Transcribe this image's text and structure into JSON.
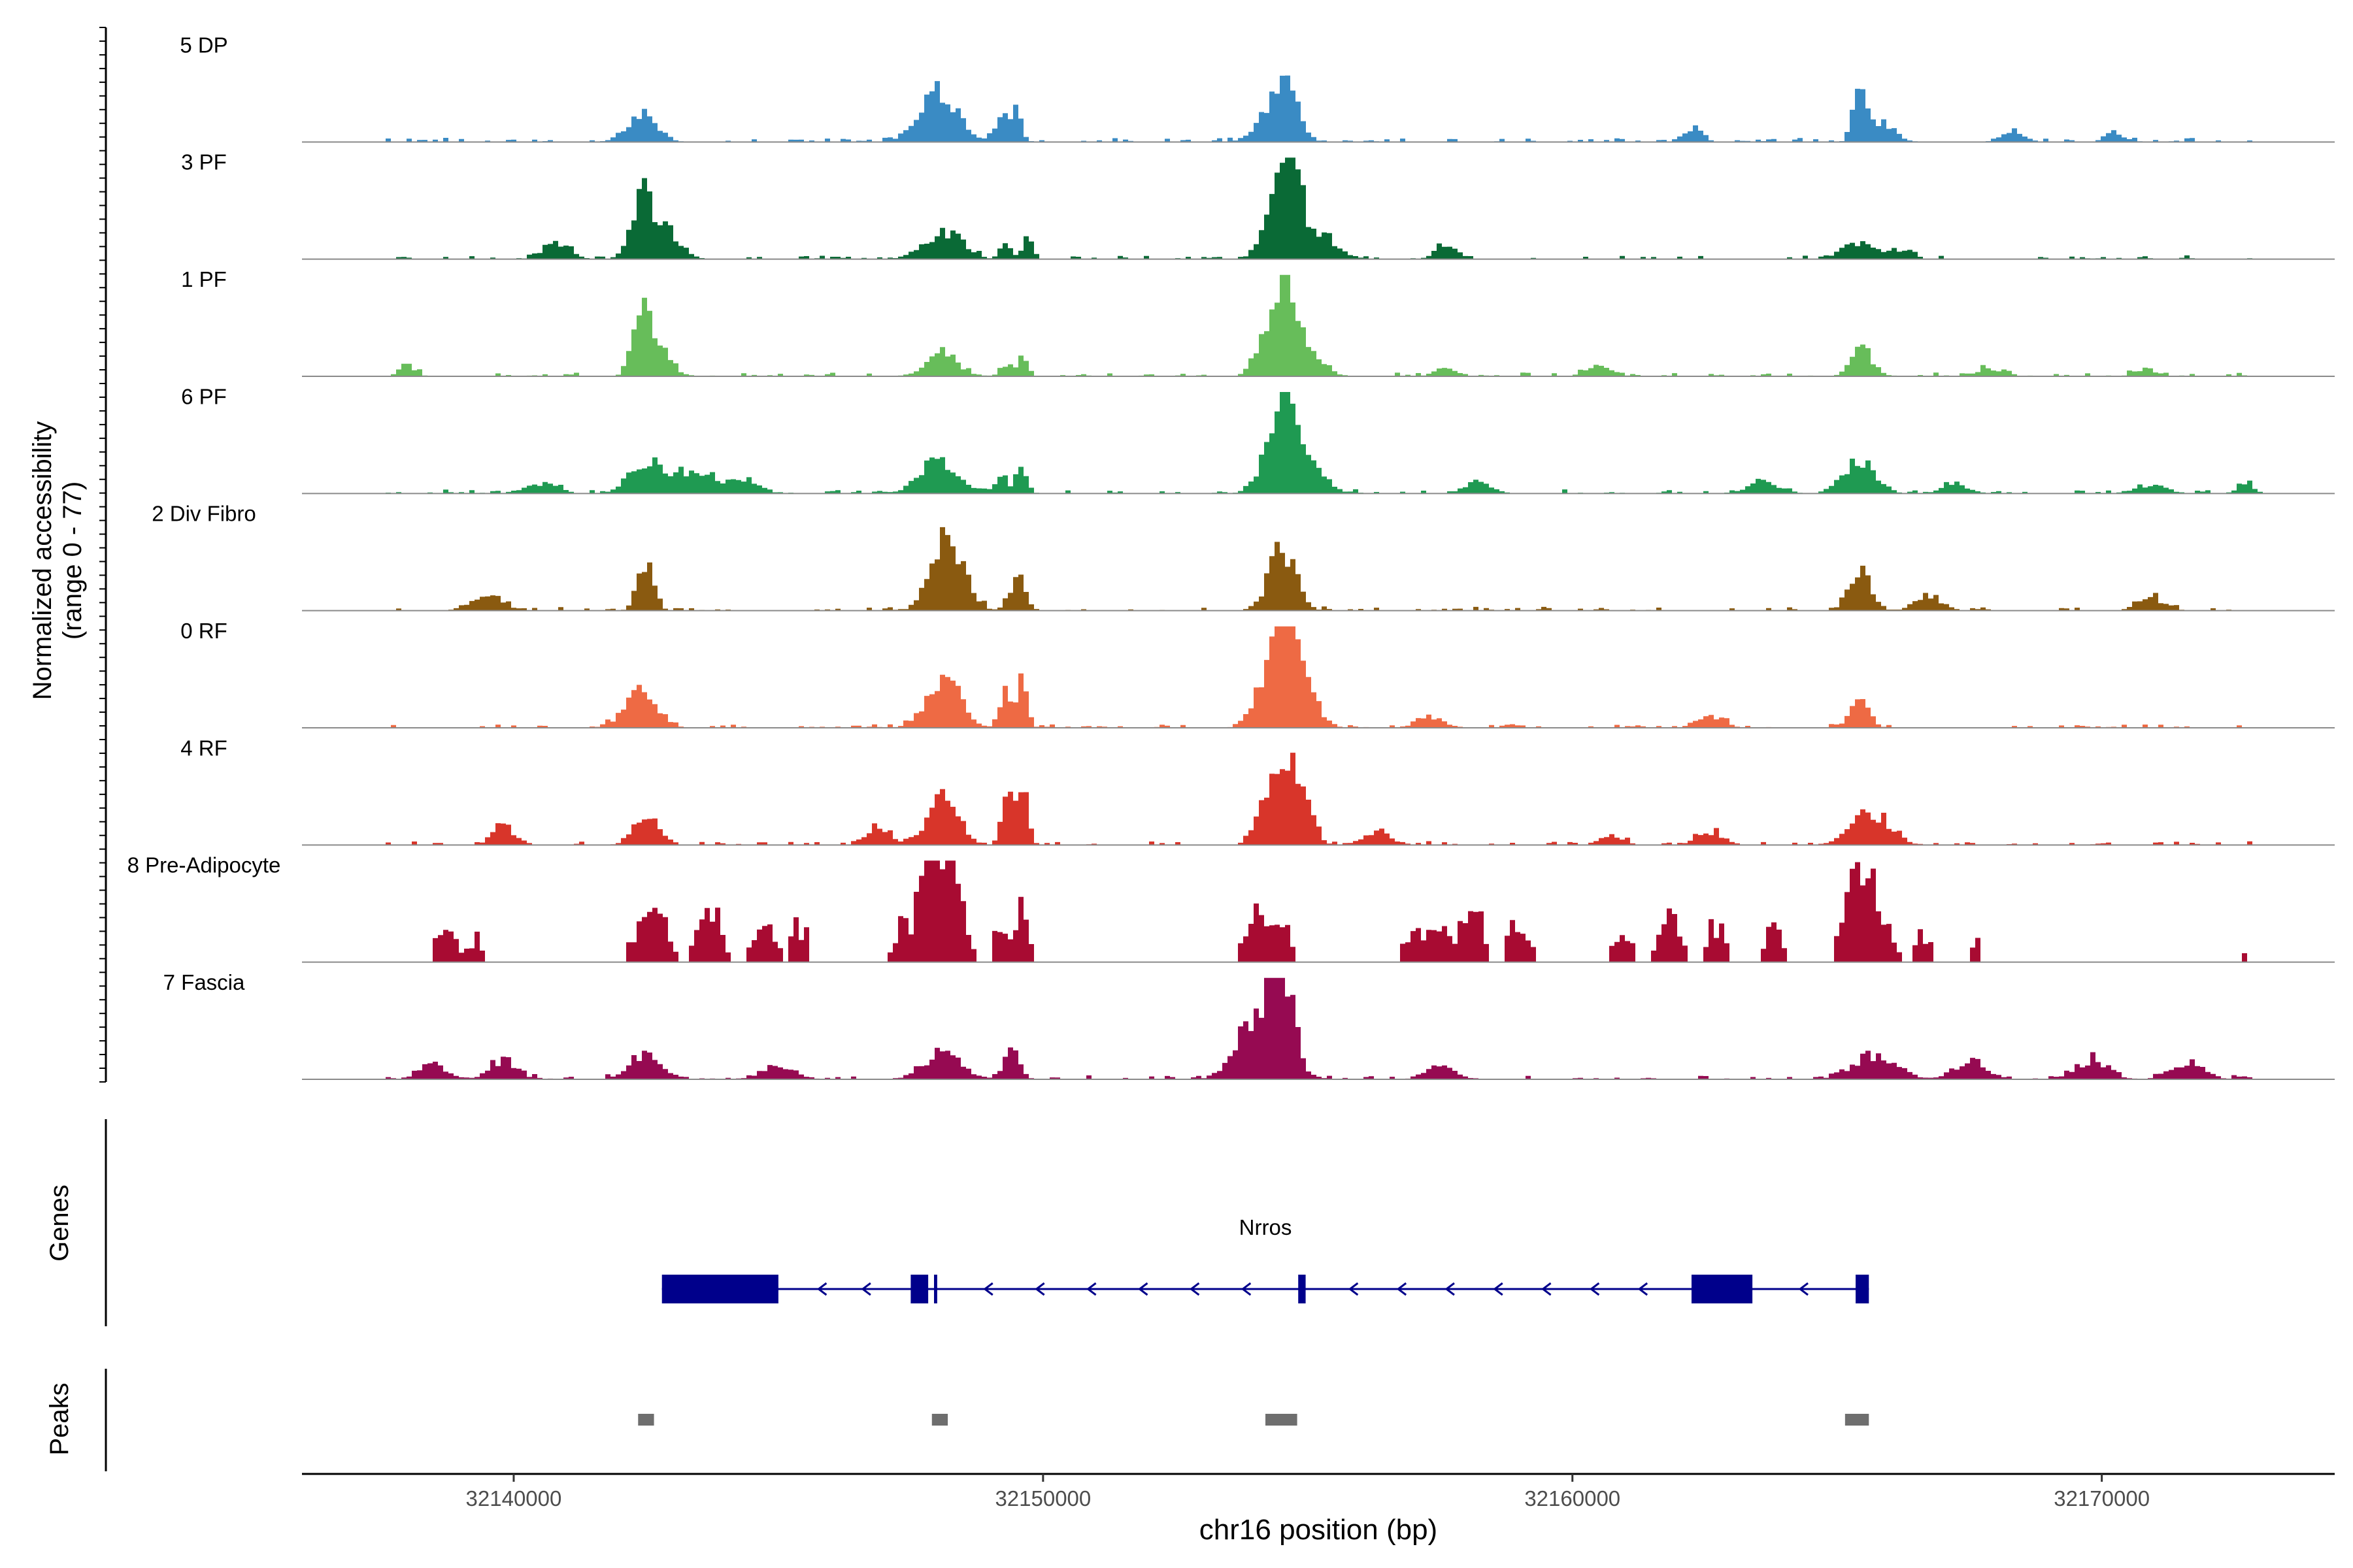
{
  "chart_data": {
    "type": "area",
    "region": "chr16",
    "xlabel": "chr16 position (bp)",
    "ylabel_line1": "Normalized accessibility",
    "ylabel_line2": "(range 0 - 77)",
    "y_range": [
      0,
      77
    ],
    "xlim": [
      32136000,
      32174400
    ],
    "x_ticks": [
      32140000,
      32150000,
      32160000,
      32170000
    ],
    "x_tick_labels": [
      "32140000",
      "32150000",
      "32160000",
      "32170000"
    ],
    "track_labels": {
      "genes": "Genes",
      "peaks": "Peaks"
    },
    "tracks": [
      {
        "name": "5 DP",
        "color": "#3a8bc4",
        "scale": 0.5,
        "peaks": [
          [
            32142400,
            280,
            0.28
          ],
          [
            32148000,
            350,
            0.52
          ],
          [
            32149200,
            120,
            0.25
          ],
          [
            32149500,
            100,
            0.3
          ],
          [
            32154300,
            300,
            0.25
          ],
          [
            32154600,
            220,
            0.45
          ],
          [
            32162300,
            150,
            0.15
          ],
          [
            32165400,
            110,
            0.72
          ],
          [
            32165800,
            250,
            0.22
          ],
          [
            32168300,
            200,
            0.12
          ],
          [
            32170200,
            160,
            0.1
          ]
        ]
      },
      {
        "name": "3 PF",
        "color": "#0a6a36",
        "scale": 1.0,
        "peaks": [
          [
            32140800,
            250,
            0.15
          ],
          [
            32142400,
            200,
            0.55
          ],
          [
            32142800,
            300,
            0.3
          ],
          [
            32148100,
            350,
            0.28
          ],
          [
            32149300,
            100,
            0.2
          ],
          [
            32149700,
            90,
            0.28
          ],
          [
            32154300,
            200,
            0.45
          ],
          [
            32154600,
            200,
            1.0
          ],
          [
            32155000,
            400,
            0.3
          ],
          [
            32157600,
            200,
            0.15
          ],
          [
            32165400,
            300,
            0.17
          ],
          [
            32166200,
            200,
            0.1
          ]
        ]
      },
      {
        "name": "1 PF",
        "color": "#67bd5a",
        "scale": 1.0,
        "peaks": [
          [
            32138000,
            150,
            0.1
          ],
          [
            32142400,
            150,
            0.68
          ],
          [
            32142700,
            250,
            0.3
          ],
          [
            32148100,
            300,
            0.22
          ],
          [
            32149300,
            120,
            0.12
          ],
          [
            32149600,
            80,
            0.2
          ],
          [
            32154200,
            200,
            0.4
          ],
          [
            32154550,
            150,
            1.0
          ],
          [
            32154900,
            300,
            0.35
          ],
          [
            32157600,
            200,
            0.1
          ],
          [
            32160500,
            250,
            0.1
          ],
          [
            32165450,
            200,
            0.28
          ],
          [
            32167900,
            250,
            0.08
          ],
          [
            32170800,
            200,
            0.07
          ]
        ]
      },
      {
        "name": "6 PF",
        "color": "#1f9a52",
        "scale": 1.0,
        "peaks": [
          [
            32140500,
            300,
            0.1
          ],
          [
            32142500,
            300,
            0.35
          ],
          [
            32143400,
            300,
            0.25
          ],
          [
            32144300,
            300,
            0.15
          ],
          [
            32148000,
            350,
            0.32
          ],
          [
            32149200,
            120,
            0.18
          ],
          [
            32149600,
            100,
            0.28
          ],
          [
            32154300,
            250,
            0.4
          ],
          [
            32154600,
            150,
            1.0
          ],
          [
            32155000,
            300,
            0.3
          ],
          [
            32158200,
            250,
            0.12
          ],
          [
            32163600,
            300,
            0.12
          ],
          [
            32165400,
            300,
            0.35
          ],
          [
            32167200,
            250,
            0.1
          ],
          [
            32170900,
            300,
            0.08
          ],
          [
            32172700,
            150,
            0.12
          ]
        ]
      },
      {
        "name": "2 Div Fibro",
        "color": "#8a5a10",
        "scale": 0.5,
        "peaks": [
          [
            32139500,
            300,
            0.15
          ],
          [
            32142500,
            150,
            0.5
          ],
          [
            32147900,
            200,
            0.38
          ],
          [
            32148200,
            150,
            0.58
          ],
          [
            32148500,
            200,
            0.35
          ],
          [
            32149500,
            150,
            0.32
          ],
          [
            32154500,
            250,
            0.62
          ],
          [
            32165400,
            200,
            0.45
          ],
          [
            32166700,
            250,
            0.15
          ],
          [
            32170900,
            250,
            0.12
          ]
        ]
      },
      {
        "name": "0 RF",
        "color": "#ee6a44",
        "scale": 0.5,
        "peaks": [
          [
            32142400,
            300,
            0.4
          ],
          [
            32148100,
            300,
            0.55
          ],
          [
            32149300,
            120,
            0.35
          ],
          [
            32149600,
            100,
            0.48
          ],
          [
            32154200,
            250,
            0.4
          ],
          [
            32154550,
            200,
            1.0
          ],
          [
            32154900,
            250,
            0.5
          ],
          [
            32157300,
            250,
            0.12
          ],
          [
            32162600,
            250,
            0.12
          ],
          [
            32165400,
            180,
            0.3
          ]
        ]
      },
      {
        "name": "4 RF",
        "color": "#d8352a",
        "scale": 0.5,
        "peaks": [
          [
            32139800,
            200,
            0.2
          ],
          [
            32142500,
            220,
            0.32
          ],
          [
            32146900,
            200,
            0.2
          ],
          [
            32148100,
            280,
            0.48
          ],
          [
            32149300,
            100,
            0.55
          ],
          [
            32149600,
            100,
            0.72
          ],
          [
            32154200,
            200,
            0.35
          ],
          [
            32154550,
            200,
            0.72
          ],
          [
            32154900,
            200,
            0.4
          ],
          [
            32156300,
            250,
            0.15
          ],
          [
            32160700,
            200,
            0.1
          ],
          [
            32162600,
            250,
            0.12
          ],
          [
            32165600,
            350,
            0.35
          ]
        ]
      },
      {
        "name": "8 Pre-Adipocyte",
        "color": "#a80b32",
        "scale": 0.5,
        "spiky": true,
        "peaks": [
          [
            32138700,
            200,
            0.4
          ],
          [
            32139300,
            150,
            0.25
          ],
          [
            32142600,
            300,
            0.5
          ],
          [
            32143700,
            200,
            0.6
          ],
          [
            32144700,
            200,
            0.5
          ],
          [
            32145400,
            150,
            0.4
          ],
          [
            32147300,
            150,
            0.3
          ],
          [
            32147900,
            200,
            1.0
          ],
          [
            32148300,
            150,
            0.85
          ],
          [
            32148000,
            400,
            0.45
          ],
          [
            32149200,
            120,
            0.4
          ],
          [
            32149600,
            100,
            0.75
          ],
          [
            32154000,
            200,
            0.55
          ],
          [
            32154500,
            200,
            0.45
          ],
          [
            32157000,
            200,
            0.3
          ],
          [
            32157500,
            200,
            0.4
          ],
          [
            32158100,
            200,
            0.55
          ],
          [
            32159000,
            200,
            0.5
          ],
          [
            32160900,
            200,
            0.35
          ],
          [
            32161800,
            200,
            0.45
          ],
          [
            32162700,
            200,
            0.4
          ],
          [
            32163800,
            200,
            0.35
          ],
          [
            32165400,
            250,
            0.85
          ],
          [
            32165800,
            250,
            0.45
          ],
          [
            32166600,
            150,
            0.3
          ],
          [
            32167600,
            150,
            0.2
          ],
          [
            32172700,
            40,
            0.2
          ]
        ]
      },
      {
        "name": "7 Fascia",
        "color": "#960a52",
        "scale": 0.5,
        "peaks": [
          [
            32138500,
            250,
            0.15
          ],
          [
            32139800,
            250,
            0.2
          ],
          [
            32142500,
            300,
            0.25
          ],
          [
            32145000,
            300,
            0.15
          ],
          [
            32148100,
            350,
            0.28
          ],
          [
            32149400,
            150,
            0.28
          ],
          [
            32153800,
            300,
            0.25
          ],
          [
            32154500,
            200,
            1.0
          ],
          [
            32154200,
            400,
            0.45
          ],
          [
            32157500,
            250,
            0.15
          ],
          [
            32165700,
            400,
            0.25
          ],
          [
            32167500,
            300,
            0.18
          ],
          [
            32169800,
            300,
            0.2
          ],
          [
            32171600,
            300,
            0.18
          ]
        ]
      }
    ],
    "gene": {
      "name": "Nrros",
      "strand": "-",
      "start": 32142800,
      "end": 32165600,
      "exons": [
        [
          32142800,
          32145000
        ],
        [
          32147500,
          32147830
        ],
        [
          32147940,
          32148000
        ],
        [
          32154820,
          32154960
        ],
        [
          32162250,
          32163400
        ],
        [
          32165350,
          32165600
        ]
      ]
    },
    "peaks": [
      [
        32142350,
        32142650
      ],
      [
        32147900,
        32148200
      ],
      [
        32154200,
        32154800
      ],
      [
        32165150,
        32165600
      ]
    ]
  }
}
